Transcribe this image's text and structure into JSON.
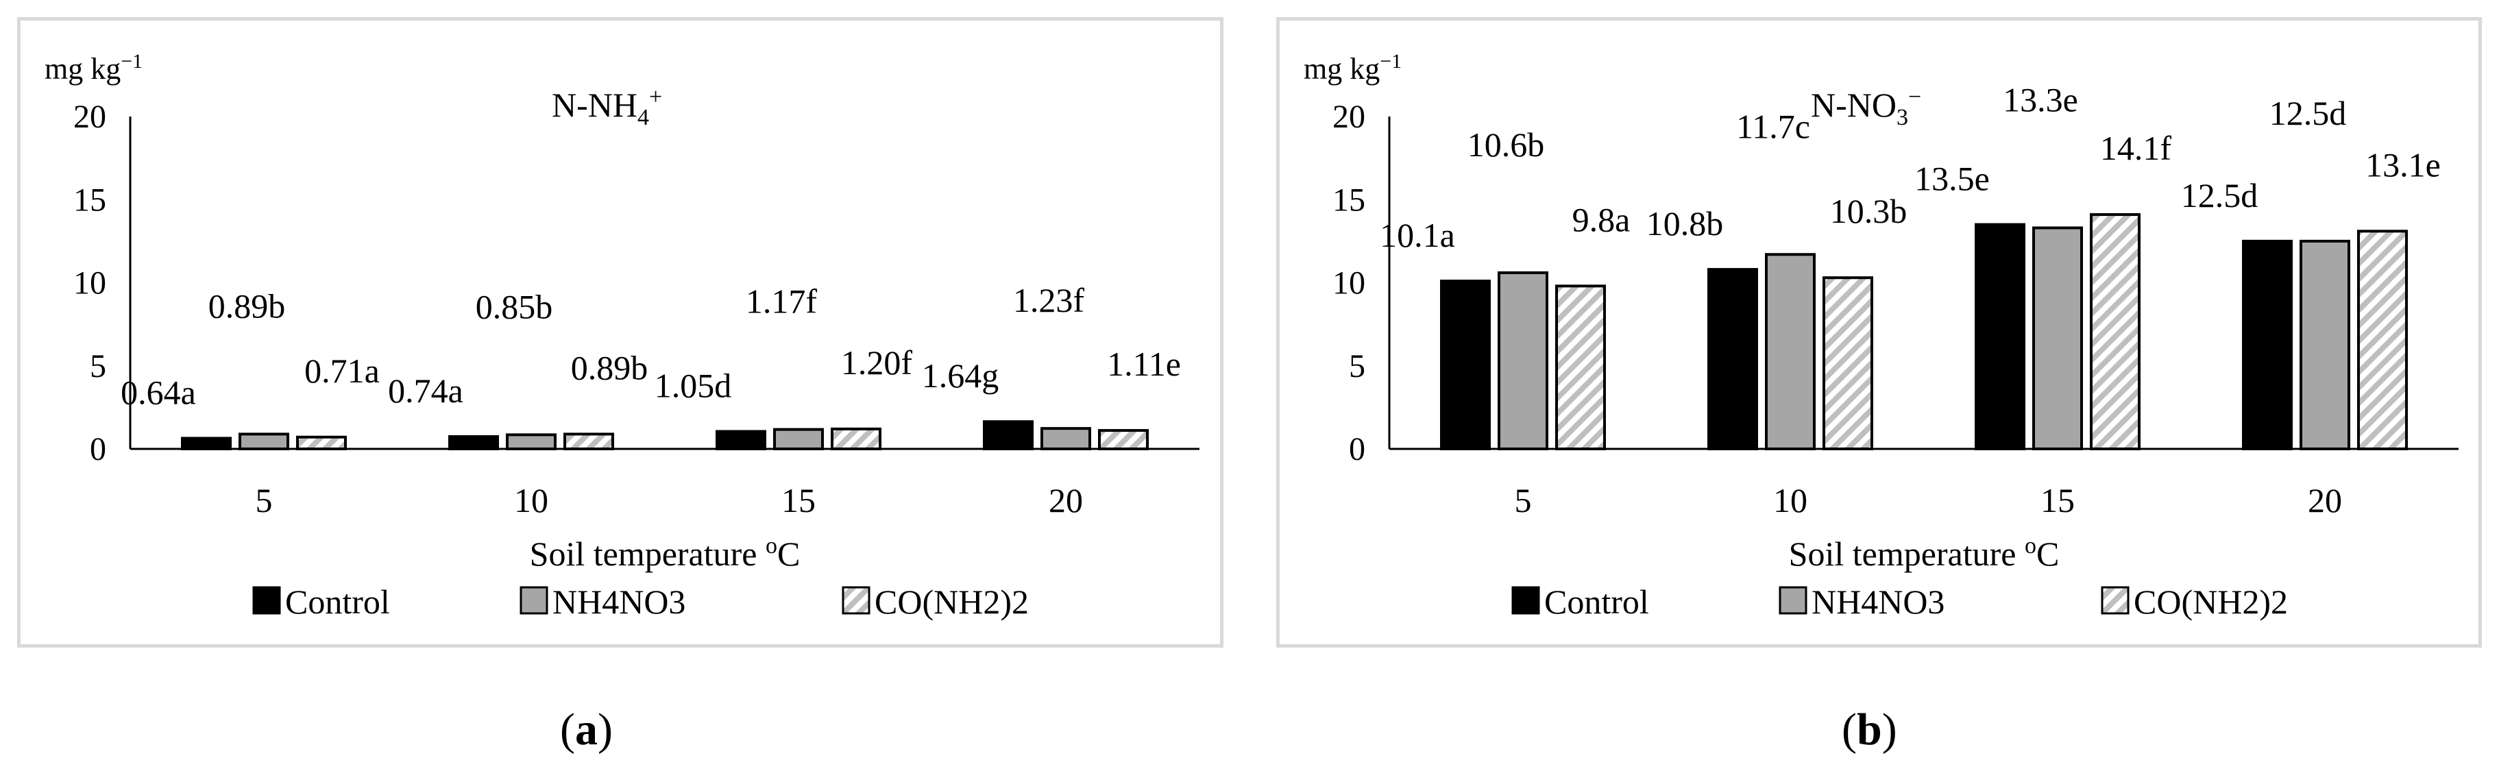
{
  "chart_data": [
    {
      "type": "bar",
      "panel_label": "a",
      "title": "N-NH",
      "title_sub": "4",
      "title_sup": "+",
      "ylabel": "mg kg",
      "ylabel_sup": "−1",
      "xlabel": "Soil temperature ",
      "xlabel_sup": "o",
      "xlabel_unit": "C",
      "ylim": [
        0,
        20
      ],
      "yticks": [
        "0",
        "5",
        "10",
        "15",
        "20"
      ],
      "categories": [
        "5",
        "10",
        "15",
        "20"
      ],
      "legend_position": "bottom",
      "series": [
        {
          "name": "Control",
          "values": [
            0.64,
            0.74,
            1.05,
            1.64
          ],
          "labels": [
            "0.64a",
            "0.74a",
            "1.05d",
            "1.64g"
          ]
        },
        {
          "name": "NH4NO3",
          "values": [
            0.89,
            0.85,
            1.17,
            1.23
          ],
          "labels": [
            "0.89b",
            "0.85b",
            "1.17f",
            "1.23f"
          ]
        },
        {
          "name": "CO(NH2)2",
          "values": [
            0.71,
            0.89,
            1.2,
            1.11
          ],
          "labels": [
            "0.71a",
            "0.89b",
            "1.20f",
            "1.11e"
          ]
        }
      ]
    },
    {
      "type": "bar",
      "panel_label": "b",
      "title": "N-NO",
      "title_sub": "3",
      "title_sup": "−",
      "ylabel": "mg kg",
      "ylabel_sup": "−1",
      "xlabel": "Soil temperature ",
      "xlabel_sup": "o",
      "xlabel_unit": "C",
      "ylim": [
        0,
        20
      ],
      "yticks": [
        "0",
        "5",
        "10",
        "15",
        "20"
      ],
      "categories": [
        "5",
        "10",
        "15",
        "20"
      ],
      "legend_position": "bottom",
      "series": [
        {
          "name": "Control",
          "values": [
            10.1,
            10.8,
            13.5,
            12.5
          ],
          "labels": [
            "10.1a",
            "10.8b",
            "13.5e",
            "12.5d"
          ]
        },
        {
          "name": "NH4NO3",
          "values": [
            10.6,
            11.7,
            13.3,
            12.5
          ],
          "labels": [
            "10.6b",
            "11.7c",
            "13.3e",
            "12.5d"
          ]
        },
        {
          "name": "CO(NH2)2",
          "values": [
            9.8,
            10.3,
            14.1,
            13.1
          ],
          "labels": [
            "9.8a",
            "10.3b",
            "14.1f",
            "13.1e"
          ]
        }
      ]
    }
  ],
  "series_styles": [
    {
      "fill": "#000000",
      "stroke": "#000000",
      "pattern": "none"
    },
    {
      "fill": "#a6a6a6",
      "stroke": "#000000",
      "pattern": "none"
    },
    {
      "fill": "#ffffff",
      "stroke": "#000000",
      "pattern": "diagonal",
      "pattern_color": "#bfbfbf"
    }
  ]
}
